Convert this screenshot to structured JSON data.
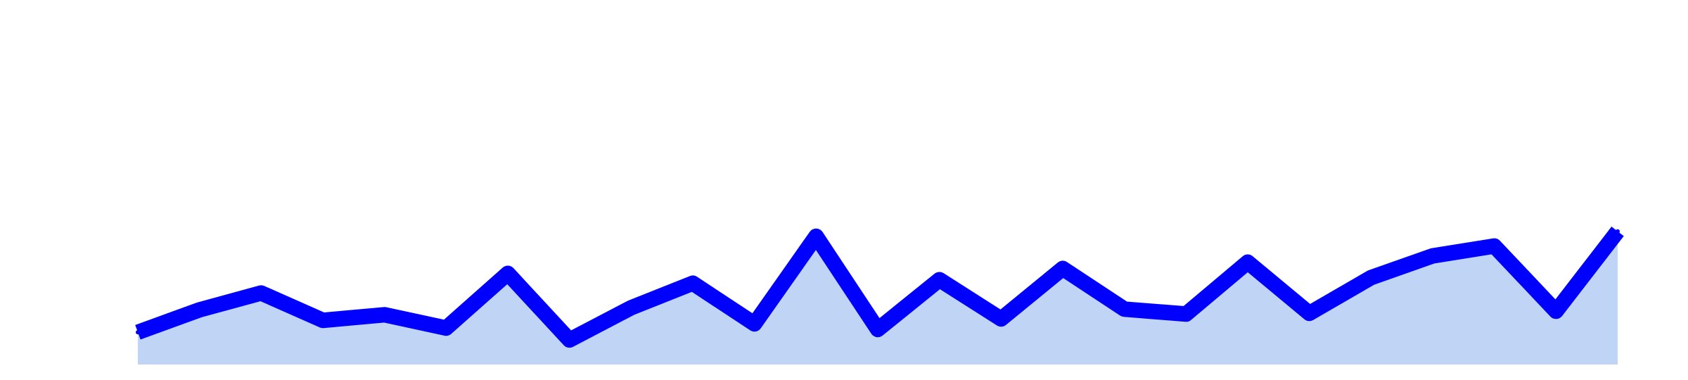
{
  "chart_data": {
    "type": "area",
    "title": "",
    "xlabel": "",
    "ylabel": "",
    "x": [
      0,
      1,
      2,
      3,
      4,
      5,
      6,
      7,
      8,
      9,
      10,
      11,
      12,
      13,
      14,
      15,
      16,
      17,
      18,
      19,
      20,
      21,
      22,
      23,
      24
    ],
    "series": [
      {
        "values": [
          4.6,
          7.8,
          10.2,
          6.3,
          7.1,
          5.2,
          13.0,
          3.5,
          8.1,
          11.6,
          5.8,
          18.3,
          5.0,
          12.1,
          6.5,
          13.7,
          7.9,
          7.2,
          14.6,
          7.3,
          12.4,
          15.5,
          16.9,
          7.6,
          19.0
        ],
        "line_color": "#0000ff",
        "fill_color": "#c0d4f5"
      }
    ],
    "xlim": [
      0,
      24
    ],
    "ylim": [
      0,
      52
    ],
    "grid": false,
    "legend": "none",
    "axes_visible": false
  }
}
